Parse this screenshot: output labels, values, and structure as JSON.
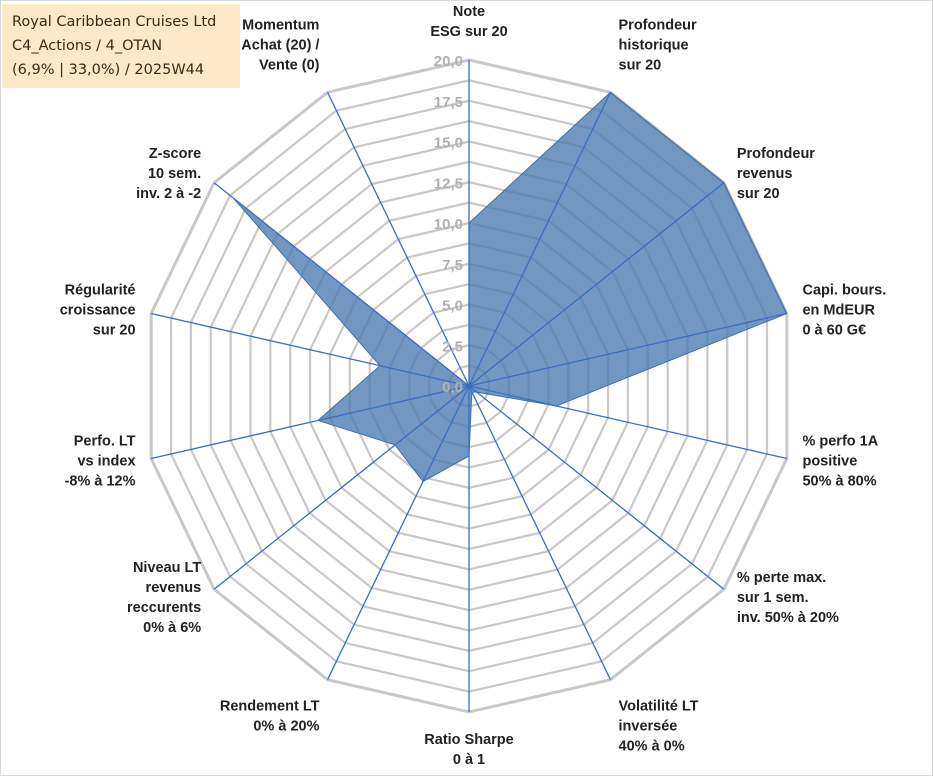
{
  "title_box": {
    "line1": "Royal Caribbean Cruises Ltd",
    "line2": "C4_Actions / 4_OTAN",
    "line3": "(6,9% | 33,0%) / 2025W44"
  },
  "colors": {
    "fill": "#4a7bb0",
    "stroke": "#3f6fa8",
    "grid": "#c8c8c8",
    "spoke": "#3a6cc6",
    "title_bg": "#fde9c8"
  },
  "chart_data": {
    "type": "radar",
    "rmax": 20,
    "ticks": [
      "0,0",
      "2,5",
      "5,0",
      "7,5",
      "10,0",
      "12,5",
      "15,0",
      "17,5",
      "20,0"
    ],
    "tick_values": [
      0,
      2.5,
      5,
      7.5,
      10,
      12.5,
      15,
      17.5,
      20
    ],
    "axes": [
      {
        "label": [
          "Note",
          "ESG sur 20"
        ],
        "value": 10
      },
      {
        "label": [
          "Profondeur",
          "historique",
          "sur 20"
        ],
        "value": 20
      },
      {
        "label": [
          "Profondeur",
          "revenus",
          "sur 20"
        ],
        "value": 20
      },
      {
        "label": [
          "Capi. bours.",
          "en MdEUR",
          "0 à 60 G€"
        ],
        "value": 20
      },
      {
        "label": [
          "% perfo 1A",
          "positive",
          "50% à 80%"
        ],
        "value": 5.5
      },
      {
        "label": [
          "% perte max.",
          "sur 1 sem.",
          "inv. 50% à 20%"
        ],
        "value": 0.6
      },
      {
        "label": [
          "Volatilité LT",
          "inversée",
          "40% à 0%"
        ],
        "value": 0.4
      },
      {
        "label": [
          "Ratio Sharpe",
          "0 à 1"
        ],
        "value": 4.3
      },
      {
        "label": [
          "Rendement LT",
          "0% à 20%"
        ],
        "value": 6.5
      },
      {
        "label": [
          "Niveau LT",
          "revenus",
          "reccurents",
          "0% à 6%"
        ],
        "value": 5.8
      },
      {
        "label": [
          "Perfo. LT",
          "vs index",
          "-8% à 12%"
        ],
        "value": 9.5
      },
      {
        "label": [
          "Régularité",
          "croissance",
          "sur 20"
        ],
        "value": 5.6
      },
      {
        "label": [
          "Z-score",
          "10 sem.",
          "inv. 2 à -2"
        ],
        "value": 18.5
      },
      {
        "label": [
          "Momentum",
          "Achat (20) /",
          "Vente (0)"
        ],
        "value": 0
      }
    ]
  }
}
